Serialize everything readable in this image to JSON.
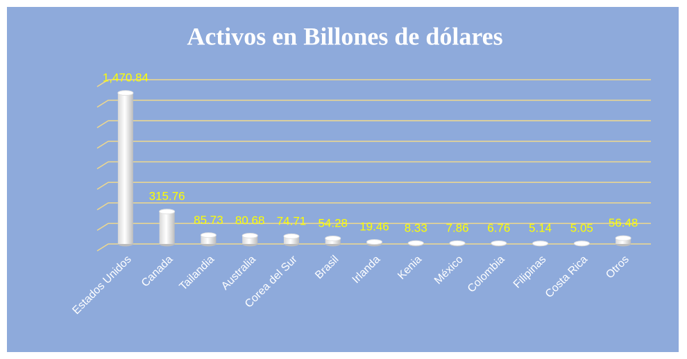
{
  "chart_data": {
    "type": "bar",
    "title": "Activos en Billones de dólares",
    "categories": [
      "Estados Unidos",
      "Canada",
      "Tailandia",
      "Australia",
      "Corea del Sur",
      "Brasil",
      "Irlanda",
      "Kenia",
      "México",
      "Colombia",
      "Filipinas",
      "Costa Rica",
      "Otros"
    ],
    "values": [
      1470.84,
      315.76,
      85.73,
      80.68,
      74.71,
      54.28,
      19.46,
      8.33,
      7.86,
      6.76,
      5.14,
      5.05,
      56.48
    ],
    "value_labels": [
      "1,470.84",
      "315.76",
      "85.73",
      "80.68",
      "74.71",
      "54.28",
      "19.46",
      "8.33",
      "7.86",
      "6.76",
      "5.14",
      "5.05",
      "56.48"
    ],
    "color": "#ffffff",
    "ylim": [
      0,
      1600
    ],
    "yticks": [
      0,
      200,
      400,
      600,
      800,
      1000,
      1200,
      1400,
      1600
    ],
    "grid": true
  }
}
